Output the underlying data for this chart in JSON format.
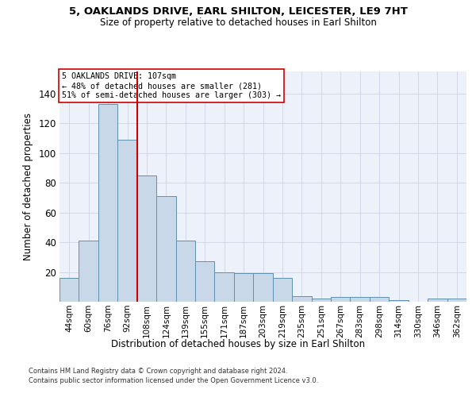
{
  "title": "5, OAKLANDS DRIVE, EARL SHILTON, LEICESTER, LE9 7HT",
  "subtitle": "Size of property relative to detached houses in Earl Shilton",
  "xlabel": "Distribution of detached houses by size in Earl Shilton",
  "ylabel": "Number of detached properties",
  "bar_color": "#c8d8e8",
  "bar_edge_color": "#6090b0",
  "grid_color": "#c8cce0",
  "background_color": "#edf1fa",
  "annotation_line_color": "#cc0000",
  "bin_labels": [
    "44sqm",
    "60sqm",
    "76sqm",
    "92sqm",
    "108sqm",
    "124sqm",
    "139sqm",
    "155sqm",
    "171sqm",
    "187sqm",
    "203sqm",
    "219sqm",
    "235sqm",
    "251sqm",
    "267sqm",
    "283sqm",
    "298sqm",
    "314sqm",
    "330sqm",
    "346sqm",
    "362sqm"
  ],
  "bar_values": [
    16,
    41,
    133,
    109,
    85,
    71,
    41,
    27,
    20,
    19,
    19,
    16,
    4,
    2,
    3,
    3,
    3,
    1,
    0,
    2,
    2
  ],
  "property_line_x": 3.5,
  "ylim_max": 155,
  "yticks": [
    20,
    40,
    60,
    80,
    100,
    120,
    140
  ],
  "annotation_line1": "5 OAKLANDS DRIVE: 107sqm",
  "annotation_line2": "← 48% of detached houses are smaller (281)",
  "annotation_line3": "51% of semi-detached houses are larger (303) →",
  "footnote1": "Contains HM Land Registry data © Crown copyright and database right 2024.",
  "footnote2": "Contains public sector information licensed under the Open Government Licence v3.0."
}
